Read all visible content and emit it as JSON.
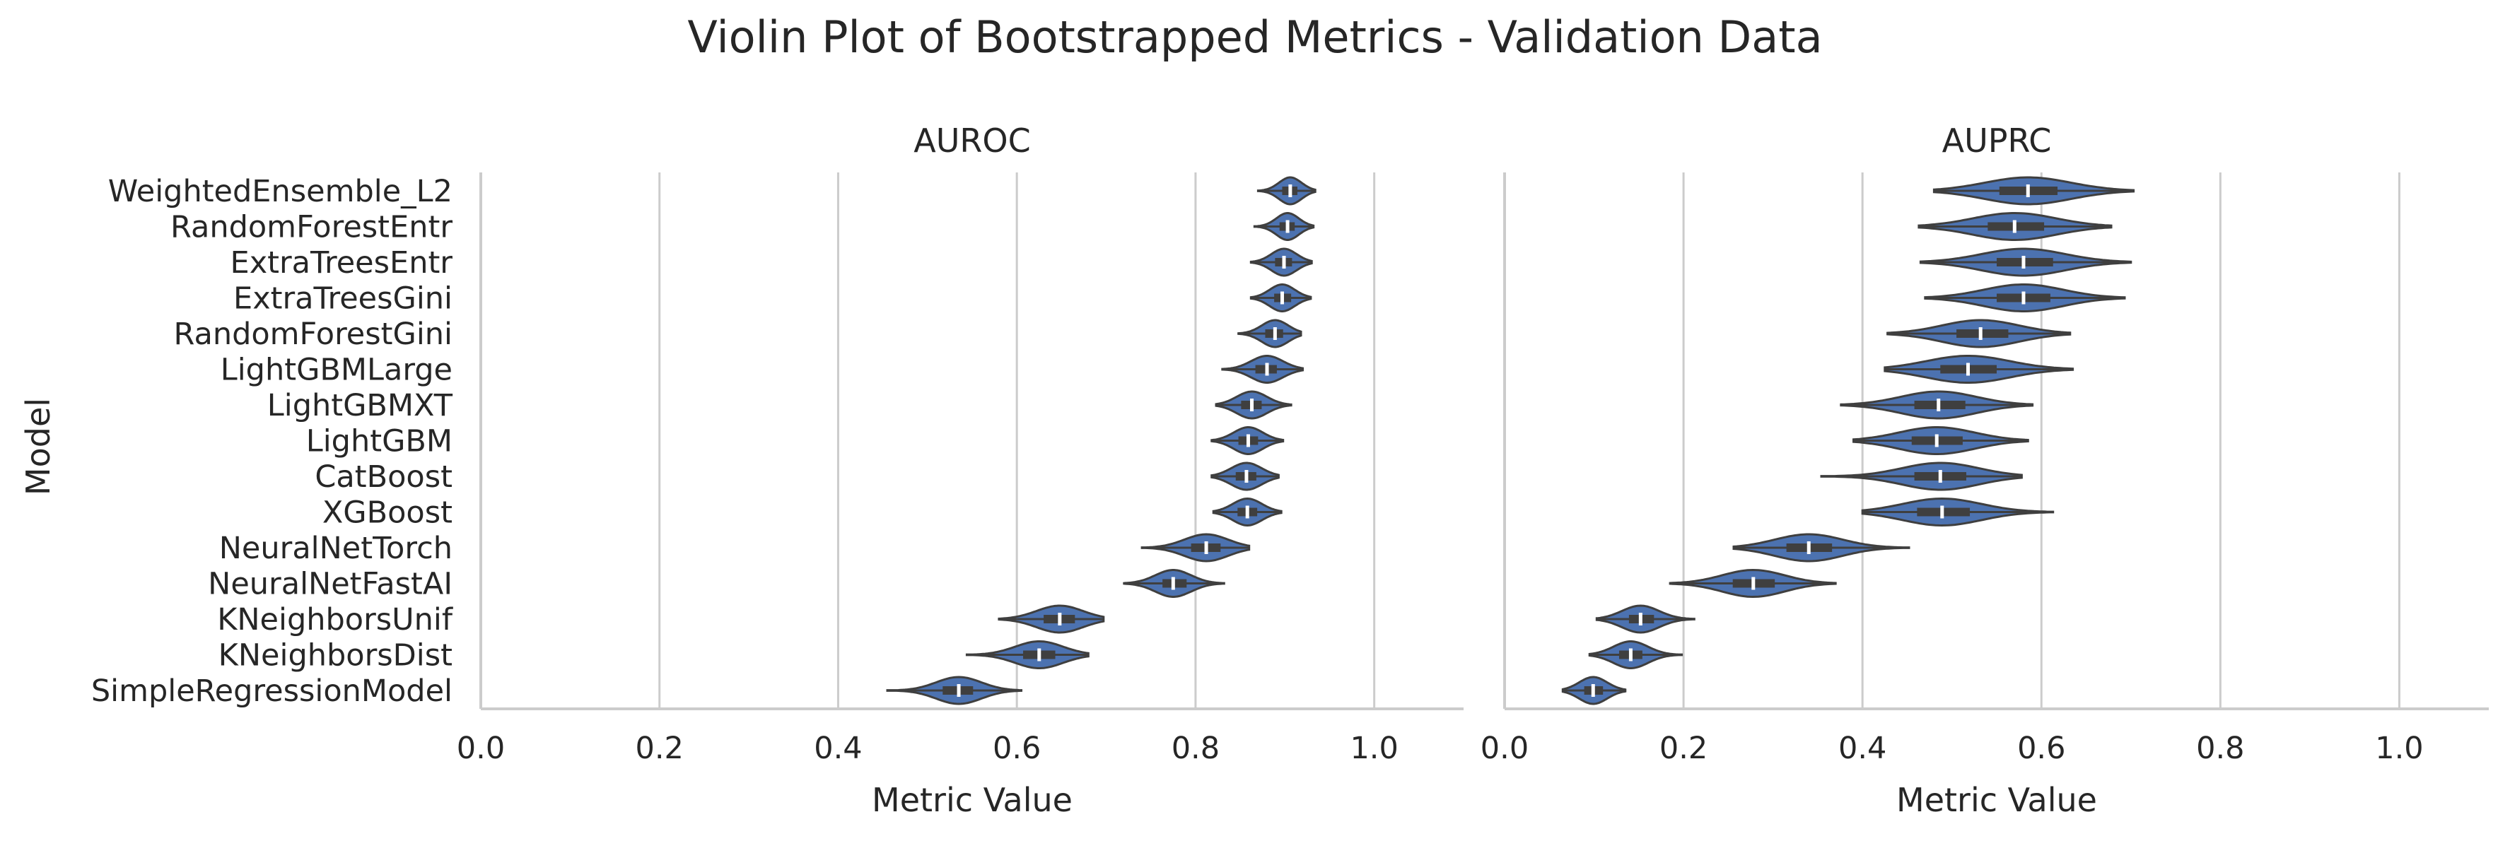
{
  "chart_data": {
    "type": "violin",
    "title": "Violin Plot of Bootstrapped Metrics - Validation Data",
    "ylabel": "Model",
    "xlim": [
      0.0,
      1.1
    ],
    "x_ticks": [
      "0.0",
      "0.2",
      "0.4",
      "0.6",
      "0.8",
      "1.0"
    ],
    "grid": "vertical",
    "colors": {
      "violin": "#4c72b0",
      "edge": "#3f3f3f",
      "grid": "#cccccc",
      "axis": "#cccccc"
    },
    "categories": [
      "WeightedEnsemble_L2",
      "RandomForestEntr",
      "ExtraTreesEntr",
      "ExtraTreesGini",
      "RandomForestGini",
      "LightGBMLarge",
      "LightGBMXT",
      "LightGBM",
      "CatBoost",
      "XGBoost",
      "NeuralNetTorch",
      "NeuralNetFastAI",
      "KNeighborsUnif",
      "KNeighborsDist",
      "SimpleRegressionModel"
    ],
    "panels": [
      {
        "title": "AUROC",
        "xlabel": "Metric Value",
        "series": [
          {
            "model": "WeightedEnsemble_L2",
            "min": 0.87,
            "q1": 0.897,
            "median": 0.906,
            "q3": 0.914,
            "max": 0.934
          },
          {
            "model": "RandomForestEntr",
            "min": 0.866,
            "q1": 0.894,
            "median": 0.903,
            "q3": 0.911,
            "max": 0.932
          },
          {
            "model": "ExtraTreesEntr",
            "min": 0.862,
            "q1": 0.889,
            "median": 0.899,
            "q3": 0.908,
            "max": 0.93
          },
          {
            "model": "ExtraTreesGini",
            "min": 0.862,
            "q1": 0.888,
            "median": 0.897,
            "q3": 0.907,
            "max": 0.929
          },
          {
            "model": "RandomForestGini",
            "min": 0.848,
            "q1": 0.878,
            "median": 0.889,
            "q3": 0.898,
            "max": 0.918
          },
          {
            "model": "LightGBMLarge",
            "min": 0.83,
            "q1": 0.867,
            "median": 0.88,
            "q3": 0.891,
            "max": 0.92
          },
          {
            "model": "LightGBMXT",
            "min": 0.823,
            "q1": 0.851,
            "median": 0.863,
            "q3": 0.874,
            "max": 0.907
          },
          {
            "model": "LightGBM",
            "min": 0.818,
            "q1": 0.848,
            "median": 0.859,
            "q3": 0.87,
            "max": 0.898
          },
          {
            "model": "CatBoost",
            "min": 0.818,
            "q1": 0.845,
            "median": 0.857,
            "q3": 0.868,
            "max": 0.893
          },
          {
            "model": "XGBoost",
            "min": 0.82,
            "q1": 0.847,
            "median": 0.858,
            "q3": 0.869,
            "max": 0.896
          },
          {
            "model": "NeuralNetTorch",
            "min": 0.74,
            "q1": 0.795,
            "median": 0.812,
            "q3": 0.828,
            "max": 0.86
          },
          {
            "model": "NeuralNetFastAI",
            "min": 0.72,
            "q1": 0.763,
            "median": 0.775,
            "q3": 0.79,
            "max": 0.832
          },
          {
            "model": "KNeighborsUnif",
            "min": 0.58,
            "q1": 0.63,
            "median": 0.648,
            "q3": 0.665,
            "max": 0.697
          },
          {
            "model": "KNeighborsDist",
            "min": 0.544,
            "q1": 0.607,
            "median": 0.625,
            "q3": 0.643,
            "max": 0.68
          },
          {
            "model": "SimpleRegressionModel",
            "min": 0.455,
            "q1": 0.517,
            "median": 0.535,
            "q3": 0.551,
            "max": 0.605
          }
        ]
      },
      {
        "title": "AUPRC",
        "xlabel": "Metric Value",
        "series": [
          {
            "model": "WeightedEnsemble_L2",
            "min": 0.48,
            "q1": 0.553,
            "median": 0.585,
            "q3": 0.618,
            "max": 0.703
          },
          {
            "model": "RandomForestEntr",
            "min": 0.463,
            "q1": 0.54,
            "median": 0.57,
            "q3": 0.603,
            "max": 0.678
          },
          {
            "model": "ExtraTreesEntr",
            "min": 0.465,
            "q1": 0.55,
            "median": 0.58,
            "q3": 0.613,
            "max": 0.7
          },
          {
            "model": "ExtraTreesGini",
            "min": 0.47,
            "q1": 0.55,
            "median": 0.58,
            "q3": 0.61,
            "max": 0.693
          },
          {
            "model": "RandomForestGini",
            "min": 0.428,
            "q1": 0.505,
            "median": 0.532,
            "q3": 0.563,
            "max": 0.632
          },
          {
            "model": "LightGBMLarge",
            "min": 0.425,
            "q1": 0.487,
            "median": 0.518,
            "q3": 0.55,
            "max": 0.635
          },
          {
            "model": "LightGBMXT",
            "min": 0.376,
            "q1": 0.458,
            "median": 0.485,
            "q3": 0.515,
            "max": 0.59
          },
          {
            "model": "LightGBM",
            "min": 0.39,
            "q1": 0.455,
            "median": 0.483,
            "q3": 0.512,
            "max": 0.585
          },
          {
            "model": "CatBoost",
            "min": 0.354,
            "q1": 0.458,
            "median": 0.487,
            "q3": 0.516,
            "max": 0.578
          },
          {
            "model": "XGBoost",
            "min": 0.4,
            "q1": 0.461,
            "median": 0.489,
            "q3": 0.52,
            "max": 0.613
          },
          {
            "model": "NeuralNetTorch",
            "min": 0.256,
            "q1": 0.315,
            "median": 0.34,
            "q3": 0.366,
            "max": 0.452
          },
          {
            "model": "NeuralNetFastAI",
            "min": 0.185,
            "q1": 0.255,
            "median": 0.278,
            "q3": 0.302,
            "max": 0.37
          },
          {
            "model": "KNeighborsUnif",
            "min": 0.103,
            "q1": 0.139,
            "median": 0.152,
            "q3": 0.167,
            "max": 0.212
          },
          {
            "model": "KNeighborsDist",
            "min": 0.095,
            "q1": 0.128,
            "median": 0.141,
            "q3": 0.154,
            "max": 0.198
          },
          {
            "model": "SimpleRegressionModel",
            "min": 0.065,
            "q1": 0.089,
            "median": 0.099,
            "q3": 0.11,
            "max": 0.135
          }
        ]
      }
    ]
  }
}
